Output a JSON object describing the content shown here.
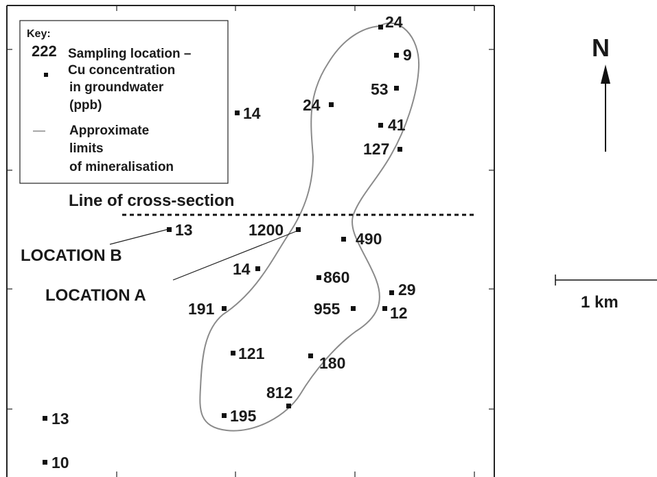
{
  "key": {
    "title": "Key:",
    "sample_number": "222",
    "sampling_lines": [
      "Sampling location –",
      "Cu concentration",
      "in groundwater",
      "(ppb)"
    ],
    "boundary_lines": [
      "Approximate",
      "limits",
      "of mineralisation"
    ]
  },
  "cross_section_label": "Line of cross-section",
  "location_a": "LOCATION A",
  "location_b": "LOCATION B",
  "north_label": "N",
  "scale_label": "1 km",
  "samples": [
    {
      "id": "s24-top",
      "value": "24"
    },
    {
      "id": "s9",
      "value": "9"
    },
    {
      "id": "s53",
      "value": "53"
    },
    {
      "id": "s24-mid",
      "value": "24"
    },
    {
      "id": "s41",
      "value": "41"
    },
    {
      "id": "s127",
      "value": "127"
    },
    {
      "id": "s14-top",
      "value": "14"
    },
    {
      "id": "s13-b",
      "value": "13"
    },
    {
      "id": "s1200",
      "value": "1200"
    },
    {
      "id": "s490",
      "value": "490"
    },
    {
      "id": "s14-low",
      "value": "14"
    },
    {
      "id": "s860",
      "value": "860"
    },
    {
      "id": "s29",
      "value": "29"
    },
    {
      "id": "s191",
      "value": "191"
    },
    {
      "id": "s955",
      "value": "955"
    },
    {
      "id": "s12",
      "value": "12"
    },
    {
      "id": "s121",
      "value": "121"
    },
    {
      "id": "s180",
      "value": "180"
    },
    {
      "id": "s812",
      "value": "812"
    },
    {
      "id": "s195",
      "value": "195"
    },
    {
      "id": "s13-bottom",
      "value": "13"
    },
    {
      "id": "s10",
      "value": "10"
    }
  ]
}
